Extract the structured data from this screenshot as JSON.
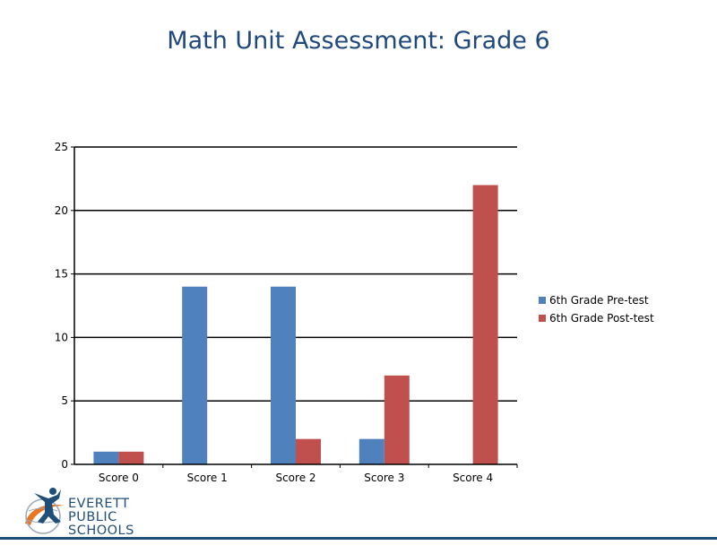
{
  "chart_data": {
    "type": "bar",
    "title": "Math Unit Assessment: Grade 6",
    "categories": [
      "Score 0",
      "Score 1",
      "Score 2",
      "Score 3",
      "Score 4"
    ],
    "series": [
      {
        "name": "6th Grade Pre-test",
        "values": [
          1,
          14,
          14,
          2,
          0
        ],
        "color": "#4F81BD"
      },
      {
        "name": "6th Grade Post-test",
        "values": [
          1,
          0,
          2,
          7,
          22
        ],
        "color": "#C0504D"
      }
    ],
    "ylim": [
      0,
      25
    ],
    "yticks": [
      0,
      5,
      10,
      15,
      20,
      25
    ],
    "grid": true,
    "legend": "right"
  },
  "logo": {
    "line1": "EVERETT",
    "line2": "PUBLIC",
    "line3": "SCHOOLS",
    "color": "#1F4E79",
    "accent": "#E87722"
  }
}
